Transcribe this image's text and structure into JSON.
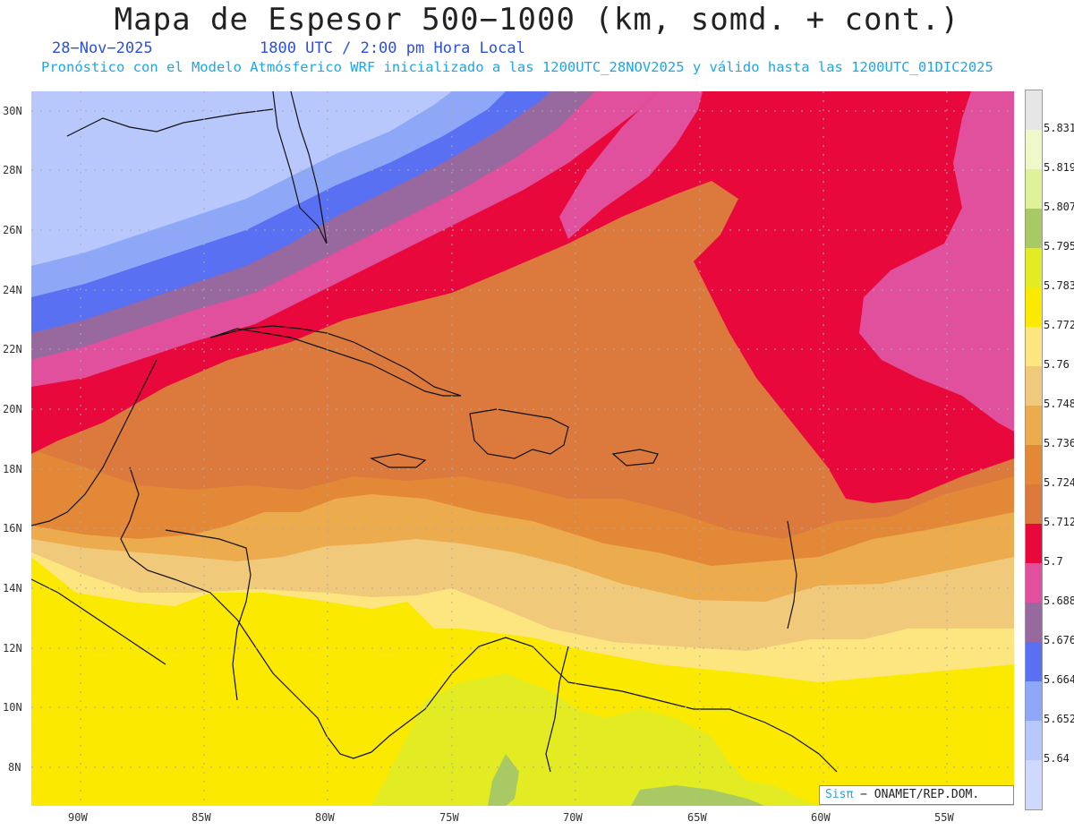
{
  "title": "Mapa de Espesor 500−1000 (km, somd. + cont.)",
  "date": "28−Nov−2025",
  "time": "1800 UTC / 2:00 pm Hora Local",
  "subtitle": "Pronóstico con el Modelo Atmósferico WRF inicializado a las 1200UTC_28NOV2025 y válido hasta las  1200UTC_01DIC2025",
  "lat_labels": [
    "30N",
    "28N",
    "26N",
    "24N",
    "22N",
    "20N",
    "18N",
    "16N",
    "14N",
    "12N",
    "10N",
    "8N"
  ],
  "lon_labels": [
    "90W",
    "85W",
    "80W",
    "75W",
    "70W",
    "65W",
    "60W",
    "55W"
  ],
  "colorbar": {
    "levels": [
      "5.831",
      "5.819",
      "5.807",
      "5.795",
      "5.783",
      "5.772",
      "5.76",
      "5.748",
      "5.736",
      "5.724",
      "5.712",
      "5.7",
      "5.688",
      "5.676",
      "5.664",
      "5.652",
      "5.64"
    ],
    "colors": [
      "#e6e6e6",
      "#eef8c8",
      "#dff29a",
      "#a9c964",
      "#e3ec22",
      "#fbe900",
      "#fde680",
      "#f1c97b",
      "#ecab4d",
      "#e38836",
      "#db7a3c",
      "#e8083c",
      "#e1509c",
      "#98699f",
      "#5970f3",
      "#8ea8f7",
      "#b9c8fc",
      "#cfd9fd"
    ]
  },
  "credit": {
    "brand": "Sisπ",
    "org": " − ONAMET/REP.DOM."
  }
}
